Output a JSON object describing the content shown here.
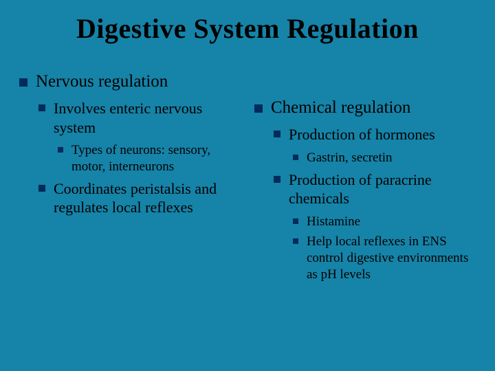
{
  "title": "Digestive System Regulation",
  "colors": {
    "background": "#1683a8",
    "bullet": "#002b5c",
    "text": "#000000"
  },
  "left": {
    "lvl1": "Nervous regulation",
    "items": [
      {
        "lvl2": "Involves enteric nervous system",
        "items": [
          {
            "lvl3": "Types of neurons: sensory, motor, interneurons"
          }
        ]
      },
      {
        "lvl2": "Coordinates peristalsis and regulates local reflexes"
      }
    ]
  },
  "right": {
    "lvl1": "Chemical regulation",
    "items": [
      {
        "lvl2": "Production of hormones",
        "items": [
          {
            "lvl3": "Gastrin, secretin"
          }
        ]
      },
      {
        "lvl2": "Production of paracrine chemicals",
        "items": [
          {
            "lvl3": "Histamine"
          },
          {
            "lvl3": "Help local reflexes in ENS control digestive environments as pH levels"
          }
        ]
      }
    ]
  }
}
